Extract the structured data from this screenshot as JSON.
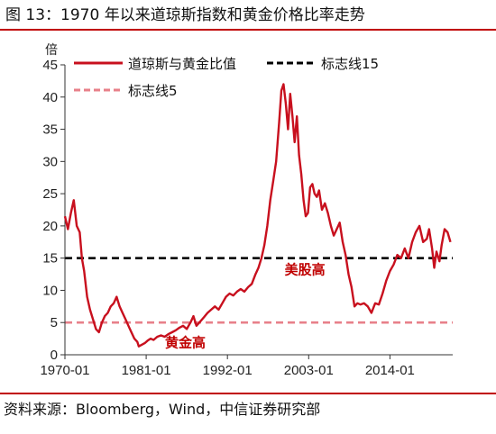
{
  "header": {
    "title": "图 13：1970 年以来道琼斯指数和黄金价格比率走势",
    "source": "资料来源：Bloomberg，Wind，中信证券研究部"
  },
  "colors": {
    "series": "#c8101e",
    "line15": "#000000",
    "line5": "#e8808a",
    "accent": "#c00000"
  },
  "chart_data": {
    "type": "line",
    "ylabel": "倍",
    "ylim": [
      0,
      45
    ],
    "yticks": [
      0,
      5,
      10,
      15,
      20,
      25,
      30,
      35,
      40,
      45
    ],
    "xlim": [
      1970,
      2022.5
    ],
    "xticks": [
      {
        "label": "1970-01",
        "value": 1970
      },
      {
        "label": "1981-01",
        "value": 1981
      },
      {
        "label": "1992-01",
        "value": 1992
      },
      {
        "label": "2003-01",
        "value": 2003
      },
      {
        "label": "2014-01",
        "value": 2014
      }
    ],
    "legend": {
      "placement": "top",
      "entries": [
        {
          "label": "道琼斯与黄金比值",
          "style": "solid"
        },
        {
          "label": "标志线15",
          "style": "dashed"
        },
        {
          "label": "标志线5",
          "style": "dashed"
        }
      ]
    },
    "reference_lines": [
      {
        "name": "标志线15",
        "y": 15
      },
      {
        "name": "标志线5",
        "y": 5
      }
    ],
    "annotations": [
      {
        "text": "美股高",
        "x": 2002.5,
        "y": 12.5
      },
      {
        "text": "黄金高",
        "x": 1986.3,
        "y": 1.2
      }
    ],
    "series": [
      {
        "name": "道琼斯与黄金比值",
        "x": [
          1970.0,
          1970.4,
          1970.8,
          1971.2,
          1971.6,
          1972.0,
          1972.3,
          1972.6,
          1973.0,
          1973.4,
          1973.8,
          1974.2,
          1974.6,
          1975.0,
          1975.4,
          1975.8,
          1976.2,
          1976.6,
          1977.0,
          1977.4,
          1977.8,
          1978.2,
          1978.6,
          1979.0,
          1979.4,
          1979.8,
          1980.0,
          1980.3,
          1980.8,
          1981.2,
          1981.6,
          1982.0,
          1982.5,
          1983.0,
          1983.5,
          1984.0,
          1984.5,
          1985.0,
          1985.5,
          1986.0,
          1986.5,
          1987.0,
          1987.4,
          1987.8,
          1988.2,
          1988.8,
          1989.3,
          1989.8,
          1990.3,
          1990.8,
          1991.3,
          1991.8,
          1992.3,
          1992.8,
          1993.3,
          1993.8,
          1994.3,
          1994.8,
          1995.3,
          1995.8,
          1996.2,
          1996.6,
          1997.0,
          1997.4,
          1997.8,
          1998.2,
          1998.6,
          1999.0,
          1999.3,
          1999.6,
          1999.9,
          2000.2,
          2000.5,
          2000.8,
          2001.1,
          2001.4,
          2001.7,
          2002.0,
          2002.3,
          2002.6,
          2002.9,
          2003.2,
          2003.5,
          2003.8,
          2004.1,
          2004.4,
          2004.8,
          2005.2,
          2005.6,
          2006.0,
          2006.4,
          2006.8,
          2007.2,
          2007.6,
          2008.0,
          2008.4,
          2008.8,
          2009.2,
          2009.6,
          2010.0,
          2010.5,
          2011.0,
          2011.5,
          2012.0,
          2012.5,
          2013.0,
          2013.5,
          2014.0,
          2014.5,
          2015.0,
          2015.5,
          2016.0,
          2016.5,
          2017.0,
          2017.5,
          2018.0,
          2018.5,
          2019.0,
          2019.3,
          2019.7,
          2020.0,
          2020.3,
          2020.7,
          2021.0,
          2021.4,
          2021.8,
          2022.2
        ],
        "y": [
          21.5,
          19.5,
          22.0,
          24.0,
          20.0,
          19.0,
          15.0,
          13.0,
          9.0,
          7.0,
          5.5,
          4.0,
          3.5,
          5.0,
          6.0,
          6.5,
          7.5,
          8.0,
          9.0,
          7.5,
          6.5,
          5.5,
          4.5,
          3.5,
          2.5,
          2.0,
          1.3,
          1.5,
          1.8,
          2.2,
          2.5,
          2.3,
          2.8,
          3.0,
          2.8,
          3.2,
          3.5,
          3.8,
          4.2,
          4.5,
          4.0,
          5.0,
          6.0,
          4.5,
          5.0,
          5.8,
          6.5,
          7.0,
          7.5,
          7.0,
          8.0,
          9.0,
          9.5,
          9.2,
          9.8,
          10.2,
          9.8,
          10.5,
          11.0,
          12.5,
          13.5,
          15.0,
          17.0,
          20.0,
          24.0,
          27.0,
          30.0,
          36.0,
          41.0,
          42.0,
          39.0,
          35.0,
          40.5,
          37.0,
          33.0,
          37.0,
          31.0,
          28.0,
          24.0,
          21.5,
          22.0,
          26.0,
          26.5,
          25.0,
          24.5,
          25.5,
          22.5,
          23.5,
          22.0,
          20.0,
          18.5,
          19.5,
          20.5,
          17.5,
          15.5,
          12.5,
          10.5,
          7.5,
          8.0,
          7.8,
          8.0,
          7.5,
          6.5,
          8.0,
          7.8,
          9.5,
          11.5,
          13.0,
          14.0,
          15.5,
          15.0,
          16.5,
          15.0,
          17.5,
          19.0,
          20.0,
          17.5,
          18.0,
          19.5,
          16.5,
          13.5,
          16.0,
          14.5,
          17.0,
          19.5,
          19.0,
          17.5
        ]
      }
    ]
  }
}
